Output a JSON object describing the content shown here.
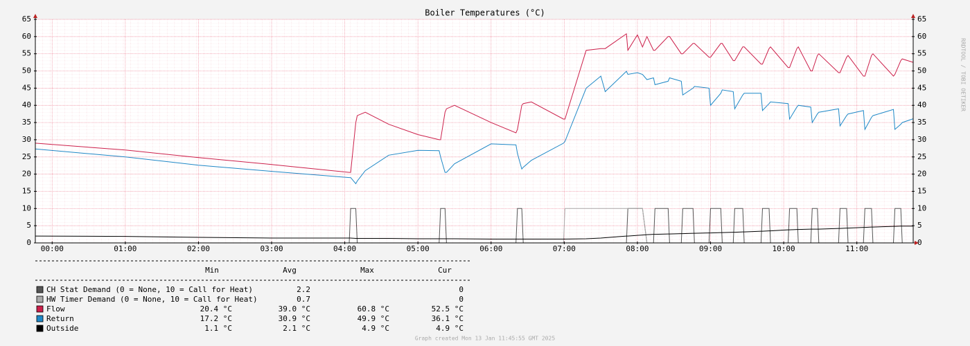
{
  "chart_data": {
    "type": "line",
    "title": "Boiler Temperatures (°C)",
    "watermark": "RRDTOOL / TOBI OETIKER",
    "footer": "Graph created Mon 13 Jan 11:45:55 GMT 2025",
    "xlim": [
      -0.23,
      11.77
    ],
    "xticks": [
      {
        "value": 0,
        "label": "00:00"
      },
      {
        "value": 1,
        "label": "01:00"
      },
      {
        "value": 2,
        "label": "02:00"
      },
      {
        "value": 3,
        "label": "03:00"
      },
      {
        "value": 4,
        "label": "04:00"
      },
      {
        "value": 5,
        "label": "05:00"
      },
      {
        "value": 6,
        "label": "06:00"
      },
      {
        "value": 7,
        "label": "07:00"
      },
      {
        "value": 8,
        "label": "08:00"
      },
      {
        "value": 9,
        "label": "09:00"
      },
      {
        "value": 10,
        "label": "10:00"
      },
      {
        "value": 11,
        "label": "11:00"
      }
    ],
    "ylim": [
      0,
      65
    ],
    "yticks": [
      0,
      5,
      10,
      15,
      20,
      25,
      30,
      35,
      40,
      45,
      50,
      55,
      60,
      65
    ],
    "grid": true,
    "stats_header": {
      "min": "Min",
      "avg": "Avg",
      "max": "Max",
      "cur": "Cur"
    },
    "x": [
      -0.23,
      1.0,
      2.0,
      3.0,
      4.06,
      4.08,
      4.15,
      4.17,
      4.28,
      4.6,
      5.0,
      5.29,
      5.31,
      5.37,
      5.39,
      5.5,
      6.0,
      6.34,
      6.36,
      6.42,
      6.44,
      6.55,
      6.99,
      7.01,
      7.3,
      7.5,
      7.56,
      7.85,
      7.87,
      8.0,
      8.07,
      8.13,
      8.22,
      8.24,
      8.42,
      8.44,
      8.6,
      8.62,
      8.76,
      8.78,
      8.98,
      9.0,
      9.14,
      9.16,
      9.31,
      9.33,
      9.44,
      9.46,
      9.69,
      9.71,
      9.8,
      9.82,
      10.06,
      10.08,
      10.18,
      10.2,
      10.37,
      10.39,
      10.46,
      10.48,
      10.75,
      10.77,
      10.86,
      10.88,
      11.09,
      11.11,
      11.2,
      11.22,
      11.5,
      11.52,
      11.6,
      11.62,
      11.77
    ],
    "series": [
      {
        "name": "CH Stat Demand (0 = None, 10 = Call for Heat)",
        "color": "#555555",
        "stats": {
          "avg": "2.2",
          "cur": "0"
        },
        "values": [
          0,
          0,
          0,
          0,
          0,
          10,
          10,
          0,
          0,
          0,
          0,
          0,
          10,
          10,
          0,
          0,
          0,
          0,
          10,
          10,
          0,
          0,
          0,
          0,
          0,
          0,
          0,
          0,
          10,
          10,
          10,
          0,
          0,
          10,
          10,
          0,
          0,
          10,
          10,
          0,
          0,
          10,
          10,
          0,
          0,
          10,
          10,
          0,
          0,
          10,
          10,
          0,
          0,
          10,
          10,
          0,
          0,
          10,
          10,
          0,
          0,
          10,
          10,
          0,
          0,
          10,
          10,
          0,
          0,
          10,
          10,
          0,
          0
        ]
      },
      {
        "name": "HW Timer Demand (0 = None, 10 = Call for Heat)",
        "color": "#aaaaaa",
        "stats": {
          "avg": "0.7",
          "cur": "0"
        },
        "values": [
          0,
          0,
          0,
          0,
          0,
          0,
          0,
          0,
          0,
          0,
          0,
          0,
          0,
          0,
          0,
          0,
          0,
          0,
          0,
          0,
          0,
          0,
          0,
          10,
          10,
          10,
          10,
          10,
          10,
          10,
          10,
          0,
          0,
          0,
          0,
          0,
          0,
          0,
          0,
          0,
          0,
          0,
          0,
          0,
          0,
          0,
          0,
          0,
          0,
          0,
          0,
          0,
          0,
          0,
          0,
          0,
          0,
          0,
          0,
          0,
          0,
          0,
          0,
          0,
          0,
          0,
          0,
          0,
          0,
          0,
          0,
          0,
          0
        ]
      },
      {
        "name": "Flow",
        "color": "#cc1f4a",
        "stats": {
          "min": "20.4 °C",
          "avg": "39.0 °C",
          "max": "60.8 °C",
          "cur": "52.5 °C"
        },
        "values": [
          29,
          27,
          24.8,
          22.8,
          20.5,
          20.5,
          35,
          37,
          38,
          34.5,
          31.5,
          30,
          30,
          38,
          39,
          40,
          35,
          32,
          33,
          40,
          40.5,
          41,
          36,
          36,
          56,
          56.5,
          56.5,
          60.8,
          56,
          60.5,
          57,
          60,
          56,
          56,
          60,
          60,
          55,
          55,
          58,
          58,
          54,
          54,
          58,
          58,
          53,
          53,
          57,
          57,
          52,
          52,
          56.5,
          57,
          51,
          51,
          56.5,
          57,
          50,
          50,
          54.5,
          55,
          49.5,
          49.5,
          54,
          54.5,
          48.5,
          48.5,
          54.5,
          55,
          48.5,
          49,
          53,
          53.5,
          52.5
        ]
      },
      {
        "name": "Return",
        "color": "#1e88c7",
        "stats": {
          "min": "17.2 °C",
          "avg": "30.9 °C",
          "max": "49.9 °C",
          "cur": "36.1 °C"
        },
        "values": [
          27.3,
          25,
          22.6,
          20.8,
          19,
          19,
          17.2,
          18,
          21,
          25.5,
          26.9,
          26.8,
          25,
          20.5,
          20.5,
          23,
          28.8,
          28.5,
          26,
          21.5,
          22,
          24,
          29,
          29.5,
          45,
          48.5,
          44,
          49.9,
          49,
          49.5,
          49,
          47.5,
          48,
          46,
          47,
          48,
          47,
          43,
          45,
          45.5,
          45,
          40,
          43.5,
          44.5,
          44,
          39,
          43,
          43.5,
          43.5,
          38.5,
          40.5,
          41,
          40.5,
          36,
          39.5,
          40,
          39.5,
          35,
          37.5,
          38,
          39,
          34,
          37,
          37.5,
          38.5,
          33,
          36.5,
          37,
          38.8,
          33,
          34.5,
          35,
          36.1
        ]
      },
      {
        "name": "Outside",
        "color": "#000000",
        "stats": {
          "min": "1.1 °C",
          "avg": "2.1 °C",
          "max": "4.9 °C",
          "cur": "4.9 °C"
        },
        "values": [
          2,
          1.9,
          1.6,
          1.4,
          1.4,
          1.4,
          1.3,
          1.3,
          1.3,
          1.3,
          1.2,
          1.2,
          1.2,
          1.2,
          1.2,
          1.2,
          1.1,
          1.1,
          1.1,
          1.1,
          1.1,
          1.1,
          1.1,
          1.1,
          1.2,
          1.4,
          1.5,
          2,
          2,
          2.2,
          2.3,
          2.4,
          2.5,
          2.5,
          2.6,
          2.6,
          2.7,
          2.7,
          2.8,
          2.8,
          2.9,
          2.9,
          3.0,
          3.0,
          3.1,
          3.1,
          3.2,
          3.2,
          3.4,
          3.4,
          3.5,
          3.5,
          3.8,
          3.8,
          3.9,
          3.9,
          4.0,
          4.0,
          4.0,
          4.0,
          4.2,
          4.2,
          4.3,
          4.3,
          4.5,
          4.5,
          4.6,
          4.6,
          4.8,
          4.8,
          4.9,
          4.9,
          4.9
        ]
      }
    ]
  }
}
